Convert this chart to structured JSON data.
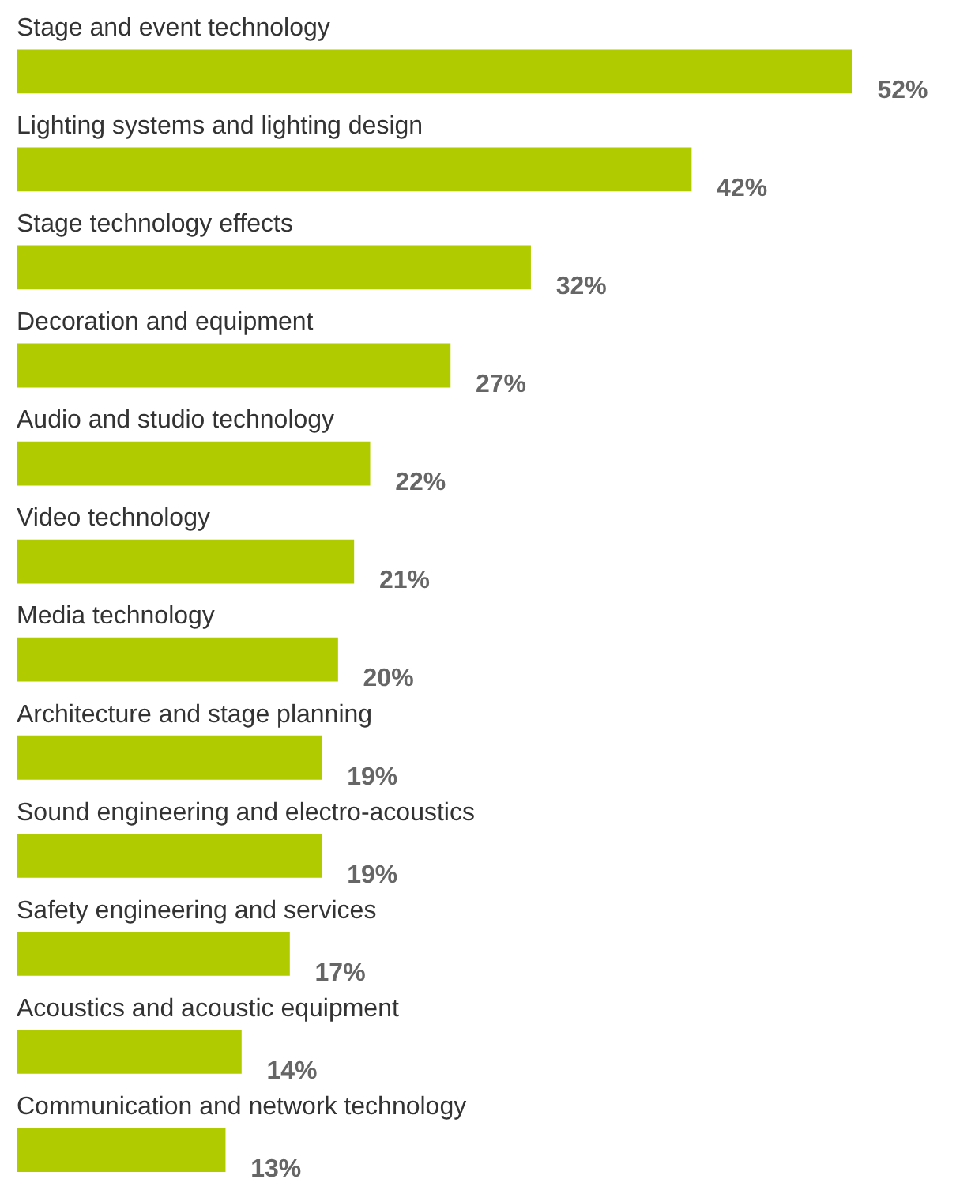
{
  "chart_data": {
    "type": "bar",
    "orientation": "horizontal",
    "categories": [
      "Stage and event technology",
      "Lighting systems and lighting design",
      "Stage technology effects",
      "Decoration and equipment",
      "Audio and studio technology",
      "Video technology",
      "Media technology",
      "Architecture and stage planning",
      "Sound engineering and electro-acoustics",
      "Safety engineering and services",
      "Acoustics and acoustic equipment",
      "Communication and network technology"
    ],
    "values": [
      52,
      42,
      32,
      27,
      22,
      21,
      20,
      19,
      19,
      17,
      14,
      13
    ],
    "value_labels": [
      "52%",
      "42%",
      "32%",
      "27%",
      "22%",
      "21%",
      "20%",
      "19%",
      "19%",
      "17%",
      "14%",
      "13%"
    ],
    "color": "#b0cb00",
    "grid": false
  }
}
